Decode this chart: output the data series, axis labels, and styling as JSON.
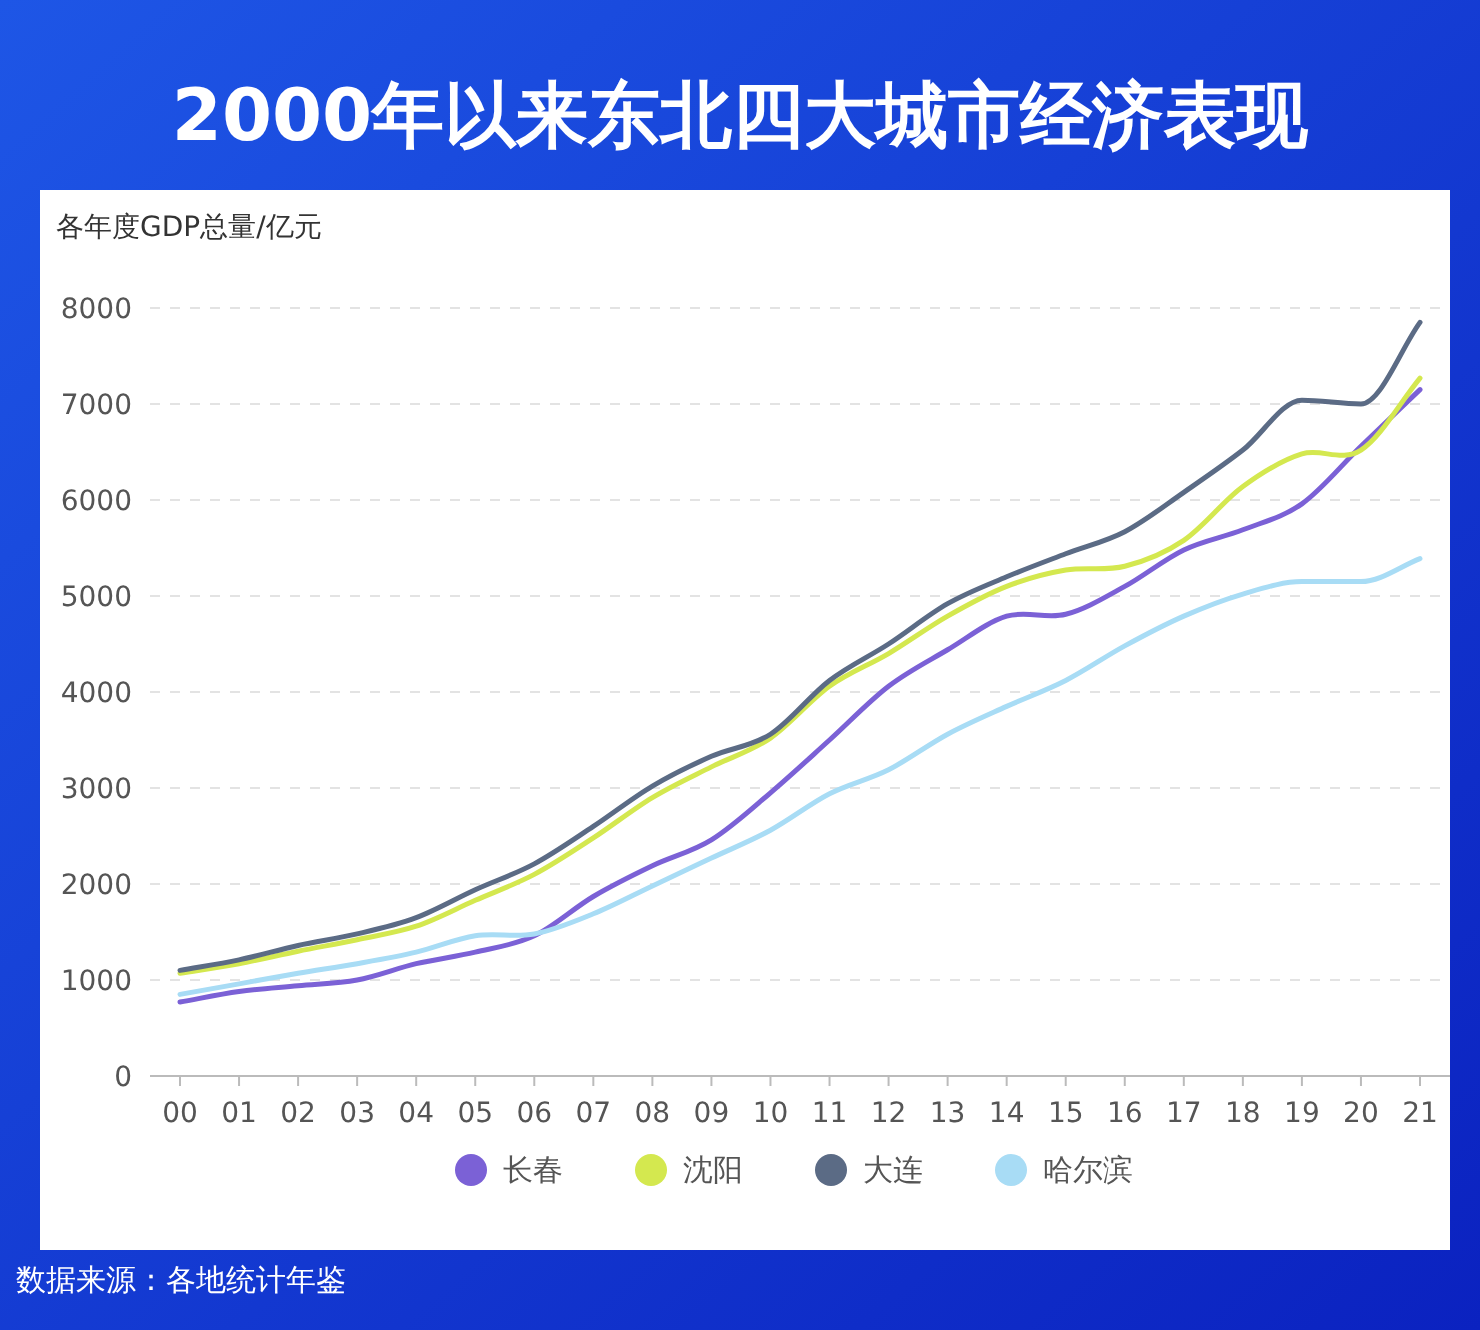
{
  "chart_data": {
    "type": "line",
    "title": "2000年以来东北四大城市经济表现",
    "ylabel": "各年度GDP总量/亿元",
    "categories": [
      "00",
      "01",
      "02",
      "03",
      "04",
      "05",
      "06",
      "07",
      "08",
      "09",
      "10",
      "11",
      "12",
      "13",
      "14",
      "15",
      "16",
      "17",
      "18",
      "19",
      "20",
      "21"
    ],
    "series": [
      {
        "name": "长春",
        "color": "#7b61d6",
        "values": [
          770,
          880,
          940,
          1000,
          1170,
          1290,
          1460,
          1870,
          2190,
          2460,
          2950,
          3500,
          4060,
          4440,
          4790,
          4810,
          5100,
          5480,
          5690,
          5960,
          6560,
          7150
        ]
      },
      {
        "name": "沈阳",
        "color": "#d4e84f",
        "values": [
          1070,
          1170,
          1300,
          1420,
          1560,
          1830,
          2100,
          2480,
          2900,
          3220,
          3520,
          4060,
          4400,
          4790,
          5100,
          5270,
          5310,
          5580,
          6140,
          6480,
          6520,
          7270
        ]
      },
      {
        "name": "大连",
        "color": "#5b6b85",
        "values": [
          1100,
          1210,
          1360,
          1480,
          1650,
          1940,
          2210,
          2600,
          3020,
          3330,
          3560,
          4120,
          4500,
          4920,
          5200,
          5440,
          5670,
          6080,
          6520,
          7040,
          7000,
          7850
        ]
      },
      {
        "name": "哈尔滨",
        "color": "#a8dcf5",
        "values": [
          850,
          960,
          1070,
          1170,
          1290,
          1460,
          1480,
          1690,
          1980,
          2270,
          2560,
          2940,
          3190,
          3560,
          3850,
          4120,
          4480,
          4790,
          5020,
          5150,
          5150,
          5390
        ]
      }
    ],
    "ylim": [
      0,
      8000
    ],
    "yticks": [
      0,
      1000,
      2000,
      3000,
      4000,
      5000,
      6000,
      7000,
      8000
    ],
    "grid": "y",
    "legend": "bottom",
    "marker": "none",
    "annotations": [
      "数据来源：各地统计年鉴"
    ]
  }
}
